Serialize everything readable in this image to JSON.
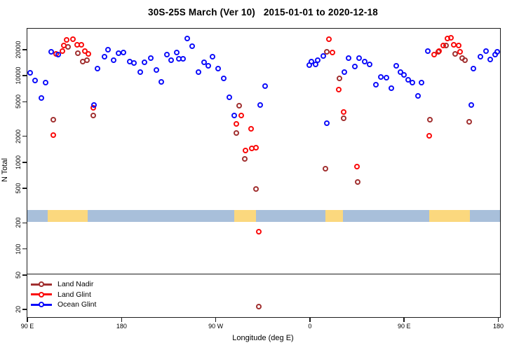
{
  "title": "30S-25S March (Ver 10)   2015-01-01 to 2020-12-18",
  "chart_data": {
    "type": "scatter",
    "title": "30S-25S March (Ver 10)   2015-01-01 to 2020-12-18",
    "xlabel": "Longitude (deg E)",
    "ylabel": "N Total",
    "y_scale": "log",
    "xlim": [
      89.3,
      541
    ],
    "ylim": [
      16.6,
      35500
    ],
    "grid": false,
    "x_ticks": [
      {
        "value": 90,
        "label": "90 E"
      },
      {
        "value": 180,
        "label": "180"
      },
      {
        "value": 270,
        "label": "90 W"
      },
      {
        "value": 360,
        "label": "0"
      },
      {
        "value": 450,
        "label": "90 E"
      },
      {
        "value": 540,
        "label": "180"
      }
    ],
    "y_ticks": [
      {
        "value": 20000,
        "label": "20000"
      },
      {
        "value": 10000,
        "label": "10000"
      },
      {
        "value": 5000,
        "label": "5000"
      },
      {
        "value": 2000,
        "label": "2000"
      },
      {
        "value": 1000,
        "label": "1000"
      },
      {
        "value": 500,
        "label": "500"
      },
      {
        "value": 200,
        "label": "200"
      },
      {
        "value": 100,
        "label": "100"
      },
      {
        "value": 50,
        "label": "50"
      },
      {
        "value": 20,
        "label": "20"
      }
    ],
    "threshold_line": {
      "value": 53,
      "color": "#1c1c1c"
    },
    "land_ocean_strip": {
      "value_range": [
        208,
        284
      ],
      "ocean_color": "#a8bfda",
      "land_color": "#fbd87e",
      "land_segments_deg": [
        [
          109,
          147
        ],
        [
          287,
          308
        ],
        [
          374,
          391
        ],
        [
          473,
          512
        ]
      ]
    },
    "legend": {
      "position": "bottom-left"
    },
    "series": [
      {
        "name": "Land Nadir",
        "color": "#a13030",
        "points": [
          [
            114,
            3170
          ],
          [
            128.5,
            21900
          ],
          [
            137.5,
            18500
          ],
          [
            142,
            14900
          ],
          [
            146.5,
            15400
          ],
          [
            152,
            3550
          ],
          [
            289,
            2200
          ],
          [
            292,
            4580
          ],
          [
            297,
            1110
          ],
          [
            307.8,
            500
          ],
          [
            310.5,
            22
          ],
          [
            374.3,
            860
          ],
          [
            375.4,
            19100
          ],
          [
            387.5,
            9500
          ],
          [
            391.5,
            3300
          ],
          [
            405,
            600
          ],
          [
            474,
            3160
          ],
          [
            482,
            19100
          ],
          [
            489.5,
            22600
          ],
          [
            498,
            18200
          ],
          [
            504.5,
            16100
          ],
          [
            507.5,
            15400
          ],
          [
            511.5,
            3000
          ]
        ]
      },
      {
        "name": "Land Glint",
        "color": "#fa0a0a",
        "points": [
          [
            114,
            2100
          ],
          [
            116.5,
            18200
          ],
          [
            122.5,
            19700
          ],
          [
            124,
            22700
          ],
          [
            127,
            26300
          ],
          [
            133,
            26800
          ],
          [
            137,
            23200
          ],
          [
            141,
            23000
          ],
          [
            144,
            19700
          ],
          [
            147.5,
            18200
          ],
          [
            152,
            4300
          ],
          [
            289,
            2800
          ],
          [
            293.5,
            3550
          ],
          [
            298,
            1390
          ],
          [
            303,
            2480
          ],
          [
            303.5,
            1480
          ],
          [
            307.5,
            1490
          ],
          [
            310.5,
            160
          ],
          [
            377.5,
            26800
          ],
          [
            381,
            18700
          ],
          [
            387,
            7050
          ],
          [
            391.5,
            3850
          ],
          [
            404.5,
            900
          ],
          [
            473.5,
            2070
          ],
          [
            478,
            17700
          ],
          [
            483,
            19600
          ],
          [
            486.5,
            22900
          ],
          [
            490.5,
            27300
          ],
          [
            494,
            28100
          ],
          [
            497,
            23300
          ],
          [
            501.5,
            22600
          ],
          [
            503,
            19100
          ]
        ]
      },
      {
        "name": "Ocean Glint",
        "color": "#0d0dfa",
        "points": [
          [
            92,
            10900
          ],
          [
            97,
            8900
          ],
          [
            102.5,
            5600
          ],
          [
            107,
            8400
          ],
          [
            112,
            19100
          ],
          [
            118.5,
            17800
          ],
          [
            153,
            4700
          ],
          [
            156.5,
            12300
          ],
          [
            163,
            16800
          ],
          [
            166.5,
            20500
          ],
          [
            172,
            15400
          ],
          [
            176.5,
            18500
          ],
          [
            181,
            18800
          ],
          [
            187,
            14900
          ],
          [
            191,
            14200
          ],
          [
            197,
            11300
          ],
          [
            201,
            14400
          ],
          [
            207,
            16300
          ],
          [
            212.5,
            11800
          ],
          [
            217.5,
            8600
          ],
          [
            223,
            17700
          ],
          [
            227,
            15400
          ],
          [
            232,
            18700
          ],
          [
            234,
            16000
          ],
          [
            238,
            15800
          ],
          [
            242,
            27200
          ],
          [
            247,
            22300
          ],
          [
            252.5,
            11100
          ],
          [
            258,
            14400
          ],
          [
            262,
            13300
          ],
          [
            266.5,
            16800
          ],
          [
            271.5,
            12200
          ],
          [
            277,
            9500
          ],
          [
            282.5,
            5700
          ],
          [
            287,
            3500
          ],
          [
            311.7,
            4700
          ],
          [
            316.5,
            7750
          ],
          [
            358.5,
            13500
          ],
          [
            361,
            14700
          ],
          [
            365,
            13800
          ],
          [
            366.5,
            15300
          ],
          [
            372,
            17100
          ],
          [
            375.4,
            2900
          ],
          [
            392.5,
            11100
          ],
          [
            396.5,
            16300
          ],
          [
            402,
            13100
          ],
          [
            406.5,
            16300
          ],
          [
            411.5,
            14900
          ],
          [
            416.5,
            13800
          ],
          [
            422.5,
            8000
          ],
          [
            427,
            9900
          ],
          [
            432.5,
            9700
          ],
          [
            437,
            7300
          ],
          [
            441.5,
            13300
          ],
          [
            446,
            11300
          ],
          [
            449,
            10400
          ],
          [
            453.5,
            9200
          ],
          [
            457,
            8500
          ],
          [
            462.5,
            5900
          ],
          [
            466,
            8400
          ],
          [
            472,
            19400
          ],
          [
            513.5,
            4700
          ],
          [
            515.5,
            12300
          ],
          [
            522.5,
            16800
          ],
          [
            527.5,
            19400
          ],
          [
            531.5,
            15600
          ],
          [
            536,
            17900
          ],
          [
            538,
            19200
          ]
        ]
      }
    ]
  }
}
